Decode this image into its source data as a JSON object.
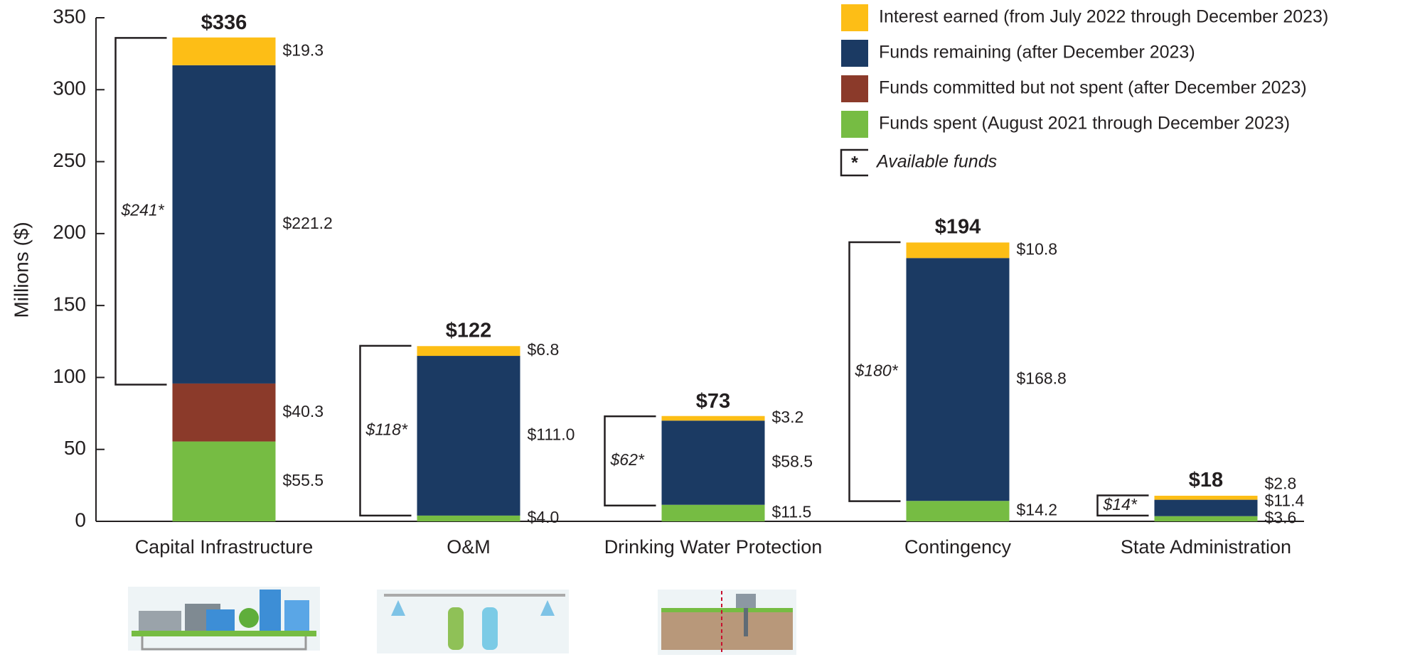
{
  "chart_data": {
    "type": "stacked_bar",
    "y_label": "Millions ($)",
    "categories": [
      "Capital Infrastructure",
      "O&M",
      "Drinking Water Protection",
      "Contingency",
      "State Administration"
    ],
    "series": [
      {
        "name": "Funds spent (August 2021 through December 2023)",
        "color": "#76bc43",
        "values": [
          55.5,
          4.0,
          11.5,
          14.2,
          3.6
        ],
        "value_labels": [
          "$55.5",
          "$4.0",
          "$11.5",
          "$14.2",
          "$3.6"
        ]
      },
      {
        "name": "Funds committed but not spent (after December 2023)",
        "color": "#8b3a2a",
        "values": [
          40.3,
          null,
          null,
          null,
          null
        ],
        "value_labels": [
          "$40.3",
          null,
          null,
          null,
          null
        ]
      },
      {
        "name": "Funds remaining (after December 2023)",
        "color": "#1b3a63",
        "values": [
          221.2,
          111.0,
          58.5,
          168.8,
          11.4
        ],
        "value_labels": [
          "$221.2",
          "$111.0",
          "$58.5",
          "$168.8",
          "$11.4"
        ]
      },
      {
        "name": "Interest earned (from July 2022 through December 2023)",
        "color": "#fdbe16",
        "values": [
          19.3,
          6.8,
          3.2,
          10.8,
          2.8
        ],
        "value_labels": [
          "$19.3",
          "$6.8",
          "$3.2",
          "$10.8",
          "$2.8"
        ]
      }
    ],
    "totals": {
      "values": [
        336,
        122,
        73,
        194,
        18
      ],
      "value_labels": [
        "$336",
        "$122",
        "$73",
        "$194",
        "$18"
      ]
    },
    "available_funds": {
      "symbol": "*",
      "label": "Available funds",
      "values": [
        241,
        118,
        62,
        180,
        14
      ],
      "value_labels": [
        "$241*",
        "$118*",
        "$62*",
        "$180*",
        "$14*"
      ]
    },
    "ylim": [
      0,
      350
    ],
    "yticks": [
      0,
      50,
      100,
      150,
      200,
      250,
      300,
      350
    ],
    "grid": false
  }
}
